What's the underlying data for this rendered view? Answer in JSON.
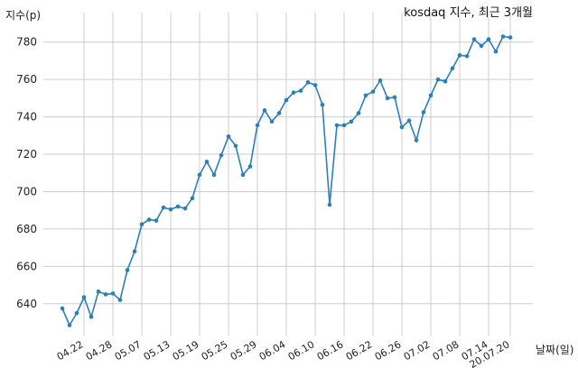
{
  "chart_data": {
    "type": "line",
    "title": "kosdaq 지수, 최근 3개월",
    "ylabel": "지수(p)",
    "xlabel": "날짜(일)",
    "ylim": [
      623,
      790
    ],
    "yticks": [
      640,
      660,
      680,
      700,
      720,
      740,
      760,
      780
    ],
    "grid": true,
    "color": "#2c7fb8",
    "xtick_labels": [
      "04.22",
      "04.28",
      "05.07",
      "05.13",
      "05.19",
      "05.25",
      "05.29",
      "06.04",
      "06.10",
      "06.16",
      "06.22",
      "06.26",
      "07.02",
      "07.08",
      "07.14",
      "20.07.20"
    ],
    "xtick_index": [
      3,
      7,
      11,
      15,
      19,
      23,
      27,
      31,
      35,
      39,
      43,
      47,
      51,
      55,
      59,
      62
    ],
    "values": [
      637.5,
      628.5,
      635,
      643.5,
      633,
      646.5,
      645,
      645.5,
      642,
      658,
      668,
      682.5,
      685,
      684.5,
      691.5,
      690.5,
      692,
      691,
      696.5,
      709,
      716,
      709,
      719.5,
      729.5,
      724.5,
      709,
      713.5,
      735.5,
      743.5,
      737.5,
      742,
      749,
      753,
      754,
      758.5,
      757,
      746.5,
      693,
      735.5,
      735.5,
      737.5,
      742,
      751.5,
      753.5,
      759.5,
      750,
      750.5,
      734.5,
      738,
      727.5,
      742.5,
      751.5,
      760,
      759,
      766,
      773,
      772.5,
      781.5,
      778,
      781.5,
      775,
      783,
      782.5
    ]
  }
}
